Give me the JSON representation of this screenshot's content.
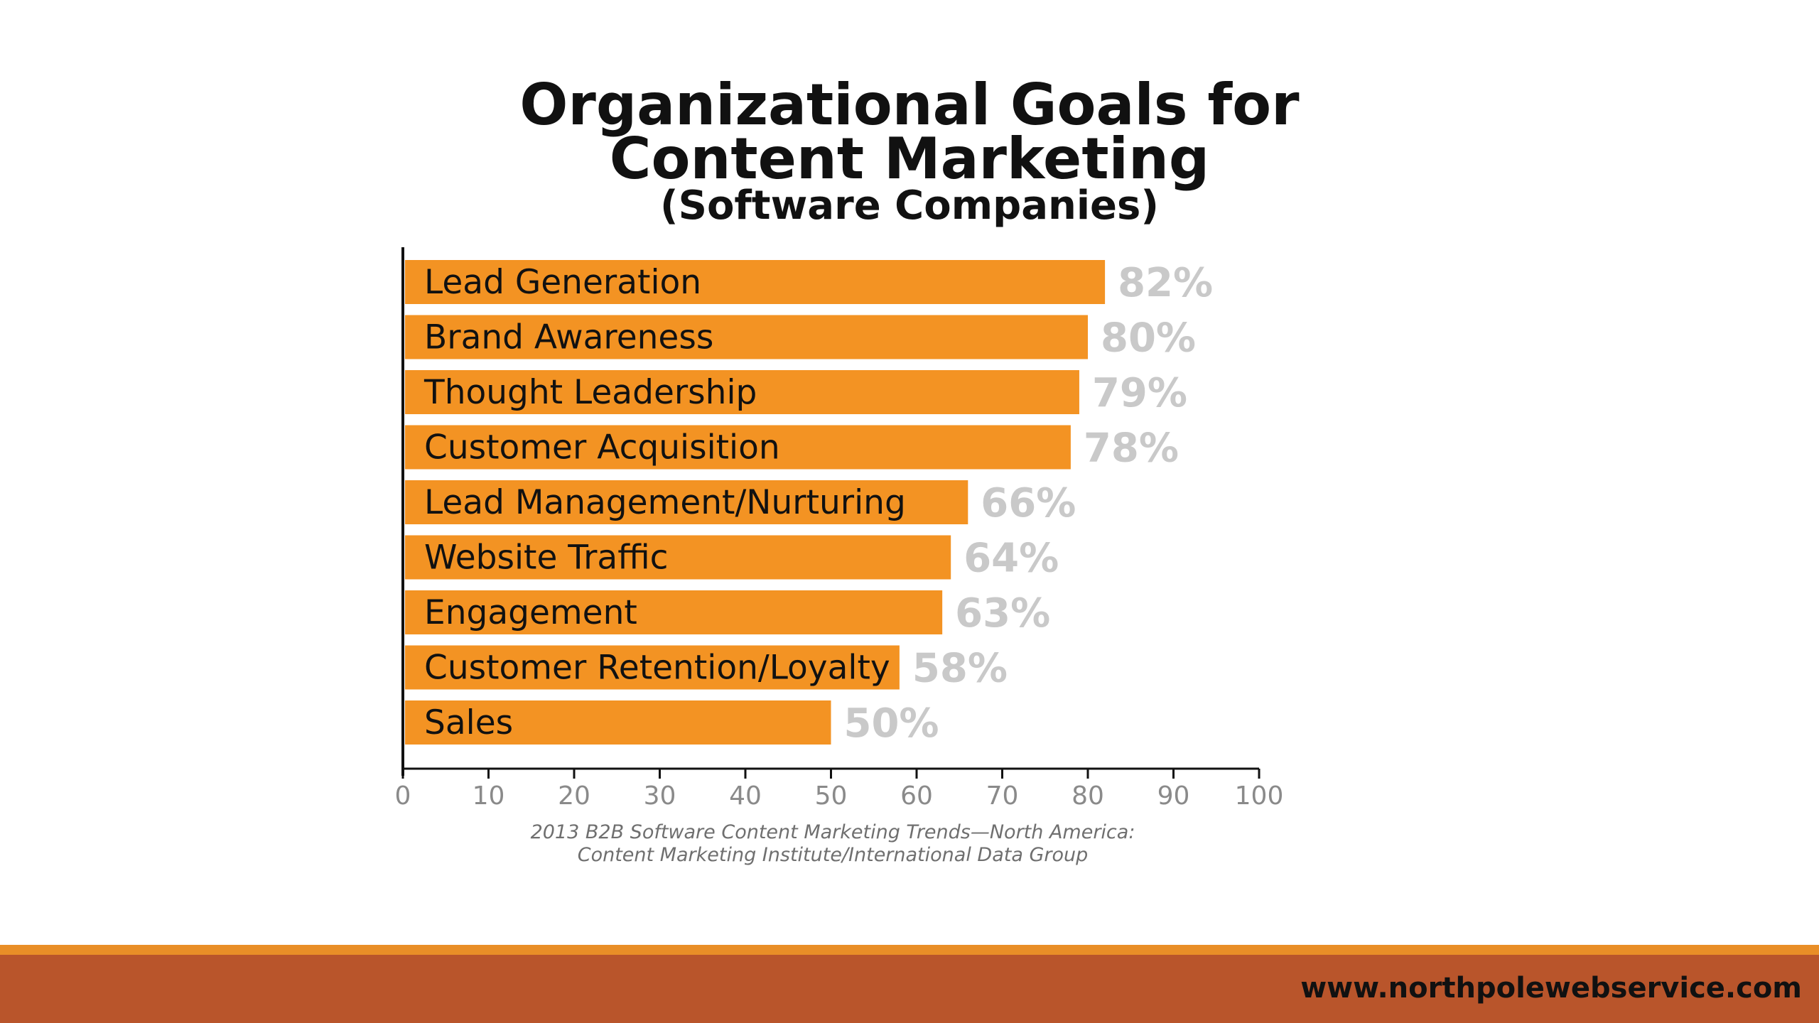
{
  "chart_data": {
    "type": "bar",
    "orientation": "horizontal",
    "title_line1": "Organizational Goals for",
    "title_line2": "Content Marketing",
    "subtitle": "(Software Companies)",
    "categories": [
      "Lead Generation",
      "Brand Awareness",
      "Thought Leadership",
      "Customer Acquisition",
      "Lead Management/Nurturing",
      "Website Traffic",
      "Engagement",
      "Customer Retention/Loyalty",
      "Sales"
    ],
    "values": [
      82,
      80,
      79,
      78,
      66,
      64,
      63,
      58,
      50
    ],
    "value_labels": [
      "82%",
      "80%",
      "79%",
      "78%",
      "66%",
      "64%",
      "63%",
      "58%",
      "50%"
    ],
    "xlim": [
      0,
      100
    ],
    "x_ticks": [
      "0",
      "10",
      "20",
      "30",
      "40",
      "50",
      "60",
      "70",
      "80",
      "90",
      "100"
    ],
    "grid": false,
    "bar_color": "#f39323",
    "source_line1": "2013 B2B Software Content Marketing Trends—North America:",
    "source_line2": "Content Marketing Institute/International Data Group"
  },
  "footer": {
    "url": "www.northpolewebservice.com",
    "bar_color": "#b9552b",
    "line_color": "#e98e27"
  }
}
